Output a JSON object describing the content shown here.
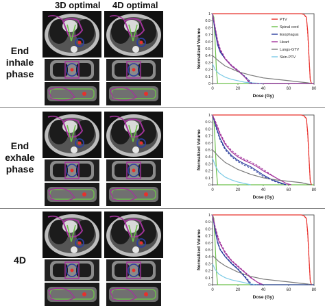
{
  "headers": {
    "col_3d": "3D optimal",
    "col_4d": "4D optimal"
  },
  "rows": [
    {
      "label_lines": [
        "End",
        "inhale",
        "phase"
      ]
    },
    {
      "label_lines": [
        "End",
        "exhale",
        "phase"
      ]
    },
    {
      "label_lines": [
        "4D"
      ]
    }
  ],
  "colors": {
    "PTV": "#e8302b",
    "Spinal cord": "#6cc04a",
    "Esophagus": "#2c3f9e",
    "Heart": "#a3339c",
    "Lungs-GTV": "#7a7a7a",
    "Skin-PTV": "#7ccbe6"
  },
  "chart_data": [
    {
      "type": "line",
      "xlabel": "Dose (Gy)",
      "ylabel": "Normalized Volume",
      "xlim": [
        0,
        80
      ],
      "ylim": [
        0,
        1
      ],
      "xticks": [
        0,
        20,
        40,
        60,
        80
      ],
      "yticks": [
        0,
        0.1,
        0.2,
        0.3,
        0.4,
        0.5,
        0.6,
        0.7,
        0.8,
        0.9,
        1
      ],
      "legend": "inside-upper-right",
      "series": [
        {
          "name": "PTV",
          "x": [
            0,
            60,
            70,
            72,
            74,
            75,
            76,
            77,
            78
          ],
          "y": [
            1,
            1,
            1,
            0.99,
            0.95,
            0.75,
            0.4,
            0.05,
            0
          ]
        },
        {
          "name": "Spinal cord",
          "x": [
            0,
            1,
            2,
            3,
            4,
            80
          ],
          "y": [
            1,
            0.95,
            0.6,
            0.2,
            0,
            0
          ]
        },
        {
          "name": "Esophagus",
          "x": [
            0,
            2,
            4,
            6,
            10,
            15,
            20,
            25,
            28,
            30,
            80
          ],
          "y": [
            1,
            0.75,
            0.55,
            0.45,
            0.35,
            0.25,
            0.18,
            0.1,
            0.04,
            0,
            0
          ]
        },
        {
          "name": "Heart",
          "x": [
            0,
            2,
            4,
            6,
            10,
            15,
            20,
            24,
            27,
            29,
            80
          ],
          "y": [
            1,
            0.8,
            0.6,
            0.48,
            0.35,
            0.25,
            0.18,
            0.12,
            0.06,
            0,
            0
          ]
        },
        {
          "name": "Lungs-GTV",
          "x": [
            0,
            5,
            10,
            20,
            30,
            40,
            50,
            60,
            70,
            75,
            78
          ],
          "y": [
            0.4,
            0.32,
            0.25,
            0.17,
            0.12,
            0.08,
            0.06,
            0.04,
            0.02,
            0.01,
            0
          ]
        },
        {
          "name": "Skin-PTV",
          "x": [
            0,
            2,
            5,
            10,
            15,
            20,
            25,
            30,
            40
          ],
          "y": [
            0.28,
            0.2,
            0.14,
            0.09,
            0.06,
            0.04,
            0.02,
            0.01,
            0
          ]
        }
      ],
      "series_dashed": [
        {
          "name": "PTV",
          "x": [
            0,
            60,
            70,
            72,
            74,
            75,
            76,
            77,
            78
          ],
          "y": [
            1,
            1,
            1,
            0.99,
            0.94,
            0.72,
            0.38,
            0.05,
            0
          ]
        },
        {
          "name": "Esophagus",
          "x": [
            0,
            2,
            4,
            6,
            10,
            15,
            20,
            25,
            29,
            31,
            80
          ],
          "y": [
            1,
            0.77,
            0.57,
            0.46,
            0.36,
            0.26,
            0.19,
            0.11,
            0.04,
            0,
            0
          ]
        },
        {
          "name": "Heart",
          "x": [
            0,
            2,
            4,
            6,
            10,
            15,
            20,
            24,
            27,
            30,
            80
          ],
          "y": [
            1,
            0.82,
            0.62,
            0.5,
            0.36,
            0.26,
            0.19,
            0.12,
            0.06,
            0,
            0
          ]
        }
      ]
    },
    {
      "type": "line",
      "xlabel": "Dose (Gy)",
      "ylabel": "Normalized Volume",
      "xlim": [
        0,
        80
      ],
      "ylim": [
        0,
        1
      ],
      "xticks": [
        0,
        20,
        40,
        60,
        80
      ],
      "yticks": [
        0,
        0.1,
        0.2,
        0.3,
        0.4,
        0.5,
        0.6,
        0.7,
        0.8,
        0.9,
        1
      ],
      "series": [
        {
          "name": "PTV",
          "x": [
            0,
            60,
            70,
            72,
            74,
            75,
            76,
            77,
            78
          ],
          "y": [
            1,
            1,
            1,
            0.99,
            0.95,
            0.75,
            0.4,
            0.05,
            0
          ]
        },
        {
          "name": "Spinal cord",
          "x": [
            0,
            1,
            2,
            3,
            4,
            80
          ],
          "y": [
            1,
            0.95,
            0.6,
            0.2,
            0,
            0
          ]
        },
        {
          "name": "Esophagus",
          "x": [
            0,
            3,
            6,
            10,
            15,
            20,
            25,
            30,
            35,
            40,
            45,
            50,
            55,
            58
          ],
          "y": [
            1,
            0.82,
            0.66,
            0.52,
            0.42,
            0.35,
            0.3,
            0.26,
            0.2,
            0.14,
            0.09,
            0.05,
            0.02,
            0
          ]
        },
        {
          "name": "Heart",
          "x": [
            0,
            3,
            6,
            10,
            15,
            20,
            25,
            30,
            35,
            40,
            45,
            50,
            55,
            58,
            62
          ],
          "y": [
            1,
            0.86,
            0.72,
            0.58,
            0.47,
            0.4,
            0.35,
            0.31,
            0.26,
            0.2,
            0.15,
            0.1,
            0.05,
            0.02,
            0
          ]
        },
        {
          "name": "Lungs-GTV",
          "x": [
            0,
            5,
            10,
            20,
            30,
            40,
            50,
            60,
            70,
            75,
            78
          ],
          "y": [
            0.5,
            0.4,
            0.32,
            0.22,
            0.15,
            0.1,
            0.07,
            0.05,
            0.03,
            0.01,
            0
          ]
        },
        {
          "name": "Skin-PTV",
          "x": [
            0,
            2,
            5,
            10,
            15,
            20,
            25,
            30
          ],
          "y": [
            0.38,
            0.28,
            0.18,
            0.11,
            0.07,
            0.04,
            0.02,
            0
          ]
        }
      ],
      "series_dashed": [
        {
          "name": "PTV",
          "x": [
            0,
            60,
            70,
            72,
            74,
            75,
            76,
            77,
            78
          ],
          "y": [
            1,
            1,
            1,
            0.99,
            0.94,
            0.72,
            0.38,
            0.05,
            0
          ]
        },
        {
          "name": "Esophagus",
          "x": [
            0,
            3,
            6,
            10,
            15,
            20,
            25,
            30,
            35,
            40,
            45,
            50,
            55,
            58
          ],
          "y": [
            1,
            0.8,
            0.64,
            0.5,
            0.4,
            0.33,
            0.28,
            0.24,
            0.18,
            0.12,
            0.08,
            0.04,
            0.01,
            0
          ]
        },
        {
          "name": "Heart",
          "x": [
            0,
            3,
            6,
            10,
            15,
            20,
            25,
            30,
            35,
            40,
            45,
            50,
            55,
            60
          ],
          "y": [
            1,
            0.88,
            0.74,
            0.6,
            0.49,
            0.42,
            0.37,
            0.33,
            0.28,
            0.22,
            0.16,
            0.1,
            0.05,
            0
          ]
        }
      ]
    },
    {
      "type": "line",
      "xlabel": "Dose (Gy)",
      "ylabel": "Normalized Volume",
      "xlim": [
        0,
        80
      ],
      "ylim": [
        0,
        1
      ],
      "xticks": [
        0,
        20,
        40,
        60,
        80
      ],
      "yticks": [
        0,
        0.1,
        0.2,
        0.3,
        0.4,
        0.5,
        0.6,
        0.7,
        0.8,
        0.9,
        1
      ],
      "series": [
        {
          "name": "PTV",
          "x": [
            0,
            60,
            70,
            72,
            74,
            75,
            76,
            77,
            78
          ],
          "y": [
            1,
            1,
            1,
            0.99,
            0.95,
            0.75,
            0.4,
            0.05,
            0
          ]
        },
        {
          "name": "Spinal cord",
          "x": [
            0,
            1,
            2,
            3,
            4,
            80
          ],
          "y": [
            1,
            0.95,
            0.6,
            0.2,
            0,
            0
          ]
        },
        {
          "name": "Esophagus",
          "x": [
            0,
            2,
            4,
            6,
            10,
            15,
            20,
            25,
            28,
            30,
            80
          ],
          "y": [
            1,
            0.78,
            0.6,
            0.5,
            0.4,
            0.3,
            0.22,
            0.12,
            0.05,
            0,
            0
          ]
        },
        {
          "name": "Heart",
          "x": [
            0,
            2,
            5,
            10,
            15,
            20,
            25,
            30,
            35,
            40
          ],
          "y": [
            1,
            0.82,
            0.62,
            0.45,
            0.34,
            0.26,
            0.18,
            0.1,
            0.04,
            0
          ]
        },
        {
          "name": "Lungs-GTV",
          "x": [
            0,
            5,
            10,
            20,
            30,
            40,
            50,
            60,
            70,
            75,
            78
          ],
          "y": [
            0.42,
            0.33,
            0.27,
            0.18,
            0.12,
            0.08,
            0.06,
            0.04,
            0.02,
            0.01,
            0
          ]
        },
        {
          "name": "Skin-PTV",
          "x": [
            0,
            2,
            5,
            10,
            15,
            20,
            25,
            30,
            35
          ],
          "y": [
            0.3,
            0.22,
            0.15,
            0.1,
            0.07,
            0.05,
            0.03,
            0.01,
            0
          ]
        }
      ],
      "series_dashed": [
        {
          "name": "PTV",
          "x": [
            0,
            60,
            70,
            72,
            74,
            75,
            76,
            77,
            78
          ],
          "y": [
            1,
            1,
            1,
            0.99,
            0.94,
            0.72,
            0.38,
            0.05,
            0
          ]
        },
        {
          "name": "Esophagus",
          "x": [
            0,
            2,
            4,
            6,
            10,
            15,
            20,
            25,
            29,
            31,
            80
          ],
          "y": [
            1,
            0.8,
            0.62,
            0.51,
            0.41,
            0.31,
            0.23,
            0.13,
            0.05,
            0,
            0
          ]
        },
        {
          "name": "Heart",
          "x": [
            0,
            2,
            5,
            10,
            15,
            20,
            25,
            30,
            35,
            38
          ],
          "y": [
            1,
            0.84,
            0.64,
            0.47,
            0.35,
            0.27,
            0.19,
            0.11,
            0.04,
            0
          ]
        }
      ]
    }
  ]
}
